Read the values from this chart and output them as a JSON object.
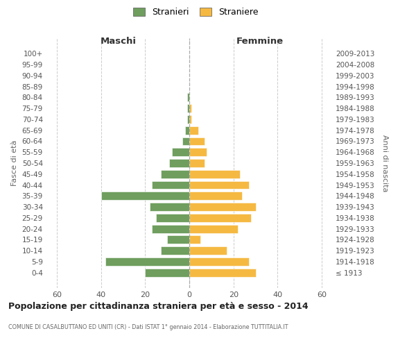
{
  "age_groups": [
    "100+",
    "95-99",
    "90-94",
    "85-89",
    "80-84",
    "75-79",
    "70-74",
    "65-69",
    "60-64",
    "55-59",
    "50-54",
    "45-49",
    "40-44",
    "35-39",
    "30-34",
    "25-29",
    "20-24",
    "15-19",
    "10-14",
    "5-9",
    "0-4"
  ],
  "birth_years": [
    "≤ 1913",
    "1914-1918",
    "1919-1923",
    "1924-1928",
    "1929-1933",
    "1934-1938",
    "1939-1943",
    "1944-1948",
    "1949-1953",
    "1954-1958",
    "1959-1963",
    "1964-1968",
    "1969-1973",
    "1974-1978",
    "1979-1983",
    "1984-1988",
    "1989-1993",
    "1994-1998",
    "1999-2003",
    "2004-2008",
    "2009-2013"
  ],
  "males": [
    0,
    0,
    0,
    0,
    1,
    1,
    1,
    2,
    3,
    8,
    9,
    13,
    17,
    40,
    18,
    15,
    17,
    10,
    13,
    38,
    20
  ],
  "females": [
    0,
    0,
    0,
    0,
    0,
    1,
    1,
    4,
    7,
    8,
    7,
    23,
    27,
    24,
    30,
    28,
    22,
    5,
    17,
    27,
    30
  ],
  "male_color": "#6f9e5e",
  "female_color": "#f5b942",
  "background_color": "#ffffff",
  "grid_color": "#cccccc",
  "title": "Popolazione per cittadinanza straniera per età e sesso - 2014",
  "subtitle": "COMUNE DI CASALBUTTANO ED UNITI (CR) - Dati ISTAT 1° gennaio 2014 - Elaborazione TUTTITALIA.IT",
  "ylabel_left": "Fasce di età",
  "ylabel_right": "Anni di nascita",
  "xlabel_maschi": "Maschi",
  "xlabel_femmine": "Femmine",
  "legend_males": "Stranieri",
  "legend_females": "Straniere",
  "xlim": 65
}
